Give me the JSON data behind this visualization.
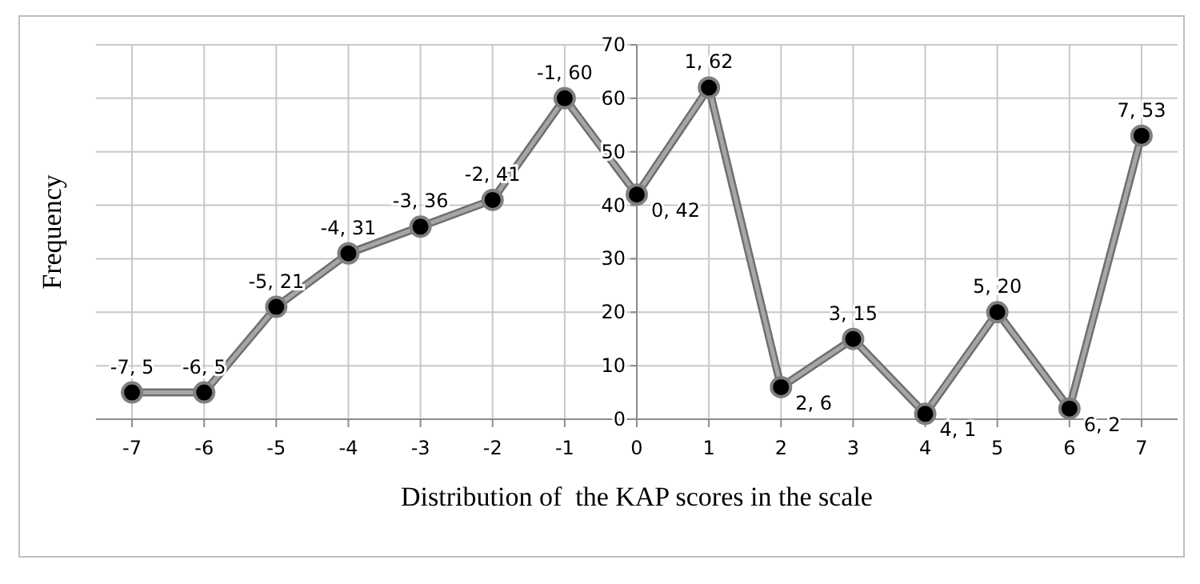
{
  "chart_data": {
    "type": "line",
    "xlabel": "Distribution of  the KAP scores in the scale",
    "ylabel": "Frequency",
    "x": [
      -7,
      -6,
      -5,
      -4,
      -3,
      -2,
      -1,
      0,
      1,
      2,
      3,
      4,
      5,
      6,
      7
    ],
    "series": [
      {
        "color": "#a6a6a6",
        "values": [
          5,
          5,
          21,
          31,
          36,
          41,
          60,
          42,
          62,
          6,
          15,
          1,
          20,
          2,
          53
        ],
        "value_labels": [
          "-7, 5",
          "-6, 5",
          "-5, 21",
          "-4, 31",
          "-3, 36",
          "-2, 41",
          "-1, 60",
          "0, 42",
          "1, 62",
          "2, 6",
          "3, 15",
          "4, 1",
          "5, 20",
          "6, 2",
          "7, 53"
        ]
      }
    ],
    "xlim": [
      -7.5,
      7.5
    ],
    "xticks": [
      -7,
      -6,
      -5,
      -4,
      -3,
      -2,
      -1,
      0,
      1,
      2,
      3,
      4,
      5,
      6,
      7
    ],
    "ylim": [
      0,
      70
    ],
    "yticks": [
      0,
      10,
      20,
      30,
      40,
      50,
      60,
      70
    ],
    "grid": true,
    "marker": "circle",
    "line_style": "solid"
  }
}
